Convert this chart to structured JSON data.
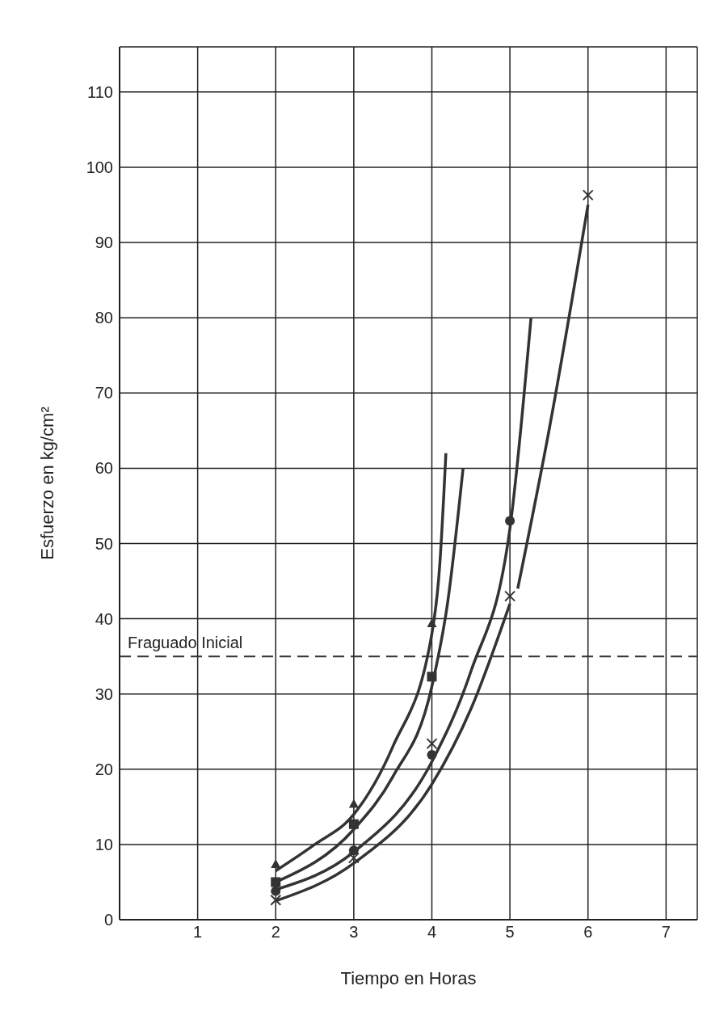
{
  "chart_data": {
    "type": "scatter",
    "xlabel": "Tiempo en Horas",
    "ylabel": "Esfuerzo en kg/cm²",
    "xlim": [
      0,
      7.4
    ],
    "ylim": [
      0,
      116
    ],
    "xticks": [
      1,
      2,
      3,
      4,
      5,
      6,
      7
    ],
    "yticks": [
      0,
      10,
      20,
      30,
      40,
      50,
      60,
      70,
      80,
      90,
      100,
      110
    ],
    "grid": true,
    "series": [
      {
        "marker": "triangle",
        "color": "#333333",
        "x": [
          2,
          3,
          4
        ],
        "values": [
          7.4,
          15.4,
          39.4
        ]
      },
      {
        "marker": "square",
        "color": "#333333",
        "x": [
          2,
          3,
          4
        ],
        "values": [
          5,
          12.7,
          32.3
        ]
      },
      {
        "marker": "circle",
        "color": "#333333",
        "x": [
          2,
          3,
          4,
          5
        ],
        "values": [
          3.8,
          9.2,
          21.9,
          53
        ]
      },
      {
        "marker": "cross",
        "color": "#333333",
        "x": [
          2,
          3,
          4,
          5,
          6
        ],
        "values": [
          2.6,
          8.2,
          23.4,
          43,
          96.3
        ]
      },
      {
        "type": "line",
        "marker": "none",
        "color": "#333333",
        "x": [
          2,
          2.5,
          3,
          3.5,
          4,
          4.1,
          4.18
        ],
        "values": [
          6.5,
          10,
          14,
          23,
          38,
          47,
          62
        ]
      },
      {
        "type": "line",
        "marker": "none",
        "color": "#333333",
        "x": [
          2,
          3,
          3.5,
          4,
          4.2,
          4.4
        ],
        "values": [
          5,
          12,
          19,
          31,
          42,
          60
        ]
      },
      {
        "type": "line",
        "marker": "none",
        "color": "#333333",
        "x": [
          2,
          3,
          4,
          4.5,
          5,
          5.27
        ],
        "values": [
          4,
          9,
          21,
          33,
          52,
          80
        ]
      },
      {
        "type": "line",
        "marker": "none",
        "color": "#333333",
        "x": [
          2,
          3,
          4,
          4.5,
          5
        ],
        "values": [
          2.5,
          7.5,
          18,
          28,
          42
        ]
      },
      {
        "type": "line",
        "marker": "none",
        "color": "#333333",
        "x": [
          5.1,
          5.5,
          6
        ],
        "values": [
          44,
          65,
          95
        ]
      }
    ],
    "ref_lines": [
      {
        "axis": "y",
        "value": 35,
        "label": "Fraguado Inicial",
        "line_style": "dashed",
        "color": "#333333"
      }
    ]
  }
}
